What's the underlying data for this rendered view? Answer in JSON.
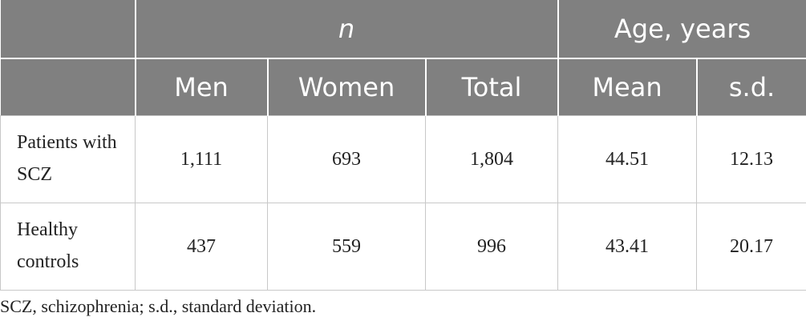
{
  "table": {
    "groups": [
      "n",
      "Age, years"
    ],
    "columns": [
      "Men",
      "Women",
      "Total",
      "Mean",
      "s.d."
    ],
    "rows": [
      {
        "label": "Patients with SCZ",
        "cells": [
          "1,111",
          "693",
          "1,804",
          "44.51",
          "12.13"
        ]
      },
      {
        "label": "Healthy controls",
        "cells": [
          "437",
          "559",
          "996",
          "43.41",
          "20.17"
        ]
      }
    ]
  },
  "footnote": "SCZ, schizophrenia; s.d., standard deviation."
}
